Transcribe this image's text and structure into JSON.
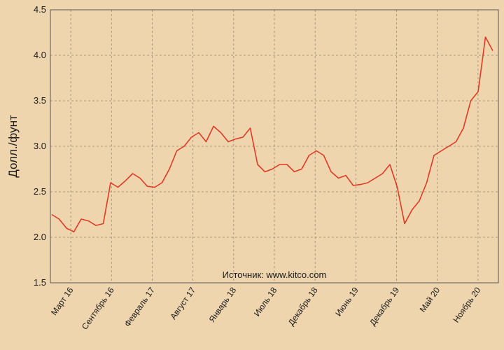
{
  "chart_data": {
    "type": "line",
    "title": "",
    "xlabel": "",
    "ylabel": "Долл./фунт",
    "ylim": [
      1.5,
      4.5
    ],
    "yticks": [
      "1.5",
      "2.0",
      "2.5",
      "3.0",
      "3.5",
      "4.0",
      "4.5"
    ],
    "grid": true,
    "annotation": "Источник: www.kitco.com",
    "x_tick_labels": [
      "Март 16",
      "Сентябрь 16",
      "Февраль 17",
      "Август 17",
      "Январь 18",
      "Июль 18",
      "Декабрь 18",
      "Июнь 19",
      "Декабрь 19",
      "Май 20",
      "Ноябрь 20"
    ],
    "series": [
      {
        "name": "",
        "color": "#e03a24",
        "x": [
          "2016-03",
          "2016-04",
          "2016-05",
          "2016-06",
          "2016-07",
          "2016-08",
          "2016-09",
          "2016-10",
          "2016-11",
          "2016-12",
          "2017-01",
          "2017-02",
          "2017-03",
          "2017-04",
          "2017-05",
          "2017-06",
          "2017-07",
          "2017-08",
          "2017-09",
          "2017-10",
          "2017-11",
          "2017-12",
          "2018-01",
          "2018-02",
          "2018-03",
          "2018-04",
          "2018-05",
          "2018-06",
          "2018-07",
          "2018-08",
          "2018-09",
          "2018-10",
          "2018-11",
          "2018-12",
          "2019-01",
          "2019-02",
          "2019-03",
          "2019-04",
          "2019-05",
          "2019-06",
          "2019-07",
          "2019-08",
          "2019-09",
          "2019-10",
          "2019-11",
          "2019-12",
          "2020-01",
          "2020-02",
          "2020-03",
          "2020-04",
          "2020-05",
          "2020-06",
          "2020-07",
          "2020-08",
          "2020-09",
          "2020-10",
          "2020-11",
          "2020-12",
          "2021-01",
          "2021-02",
          "2021-03"
        ],
        "values": [
          2.25,
          2.2,
          2.1,
          2.06,
          2.2,
          2.18,
          2.13,
          2.15,
          2.6,
          2.55,
          2.62,
          2.7,
          2.65,
          2.56,
          2.55,
          2.6,
          2.75,
          2.95,
          3.0,
          3.1,
          3.15,
          3.05,
          3.22,
          3.15,
          3.05,
          3.08,
          3.1,
          3.2,
          2.8,
          2.72,
          2.75,
          2.8,
          2.8,
          2.72,
          2.75,
          2.9,
          2.95,
          2.9,
          2.72,
          2.65,
          2.68,
          2.57,
          2.58,
          2.6,
          2.65,
          2.7,
          2.8,
          2.55,
          2.15,
          2.3,
          2.4,
          2.6,
          2.9,
          2.95,
          3.0,
          3.05,
          3.2,
          3.5,
          3.6,
          4.2,
          4.05
        ]
      }
    ]
  }
}
